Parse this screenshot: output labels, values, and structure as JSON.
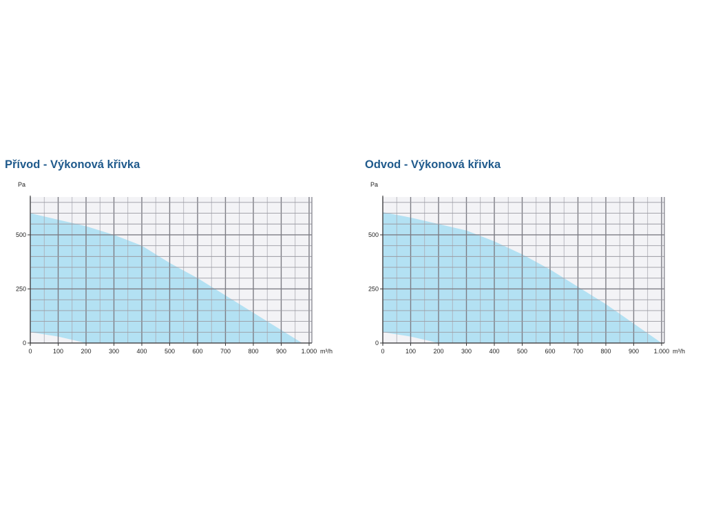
{
  "chart_data": [
    {
      "type": "area",
      "title": "Přívod - Výkonová křivka",
      "ylabel": "Pa",
      "xlabel": "m³/h",
      "xlim": [
        0,
        1010
      ],
      "ylim": [
        0,
        675
      ],
      "grid": true,
      "x_ticks": [
        0,
        100,
        200,
        300,
        400,
        500,
        600,
        700,
        800,
        900,
        1000
      ],
      "x_tick_labels": [
        "0",
        "100",
        "200",
        "300",
        "400",
        "500",
        "600",
        "700",
        "800",
        "900",
        "1.000"
      ],
      "y_ticks": [
        0,
        250,
        500
      ],
      "y_tick_labels": [
        "0",
        "250",
        "500"
      ],
      "area_color": "#b3e1f3",
      "upper_curve": [
        [
          0,
          600
        ],
        [
          100,
          570
        ],
        [
          200,
          540
        ],
        [
          300,
          500
        ],
        [
          400,
          450
        ],
        [
          500,
          370
        ],
        [
          600,
          300
        ],
        [
          700,
          220
        ],
        [
          800,
          140
        ],
        [
          900,
          60
        ],
        [
          975,
          0
        ]
      ],
      "lower_curve": [
        [
          0,
          50
        ],
        [
          100,
          30
        ],
        [
          200,
          0
        ]
      ]
    },
    {
      "type": "area",
      "title": "Odvod - Výkonová křivka",
      "ylabel": "Pa",
      "xlabel": "m³/h",
      "xlim": [
        0,
        1010
      ],
      "ylim": [
        0,
        675
      ],
      "grid": true,
      "x_ticks": [
        0,
        100,
        200,
        300,
        400,
        500,
        600,
        700,
        800,
        900,
        1000
      ],
      "x_tick_labels": [
        "0",
        "100",
        "200",
        "300",
        "400",
        "500",
        "600",
        "700",
        "800",
        "900",
        "1.000"
      ],
      "y_ticks": [
        0,
        250,
        500
      ],
      "y_tick_labels": [
        "0",
        "250",
        "500"
      ],
      "area_color": "#b3e1f3",
      "upper_curve": [
        [
          0,
          605
        ],
        [
          100,
          580
        ],
        [
          200,
          550
        ],
        [
          300,
          520
        ],
        [
          400,
          470
        ],
        [
          500,
          410
        ],
        [
          600,
          340
        ],
        [
          700,
          260
        ],
        [
          800,
          180
        ],
        [
          900,
          90
        ],
        [
          1000,
          0
        ]
      ],
      "lower_curve": [
        [
          0,
          50
        ],
        [
          100,
          30
        ],
        [
          200,
          0
        ]
      ]
    }
  ]
}
